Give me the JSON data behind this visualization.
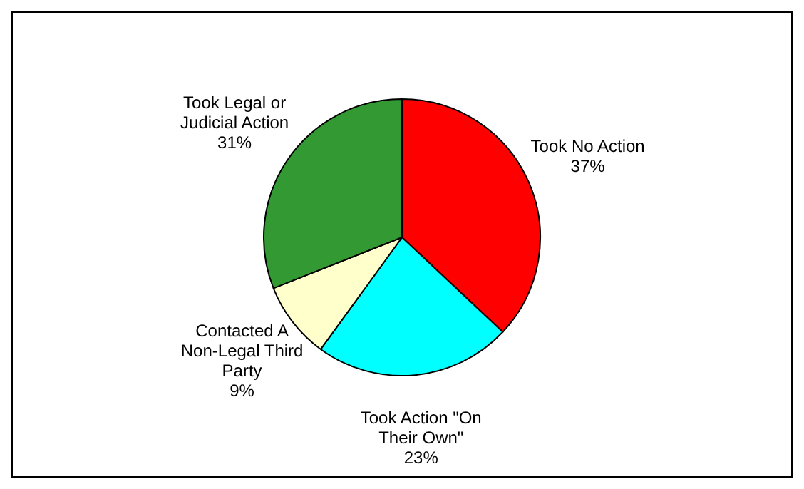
{
  "chart_data": {
    "type": "pie",
    "categories": [
      "Took No Action",
      "Took Action \"On Their Own\"",
      "Contacted A Non-Legal Third Party",
      "Took Legal or Judicial Action"
    ],
    "values": [
      37,
      23,
      9,
      31
    ],
    "colors": [
      "#ff0000",
      "#00ffff",
      "#ffffcc",
      "#339933"
    ],
    "value_labels": [
      "37%",
      "23%",
      "9%",
      "31%"
    ],
    "legend": false
  }
}
